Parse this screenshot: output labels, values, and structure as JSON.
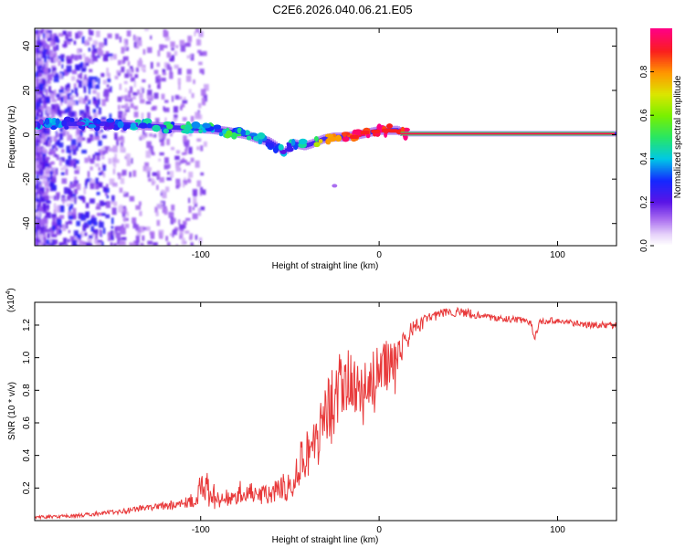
{
  "title": "C2E6.2026.040.06.21.E05",
  "chart_data": [
    {
      "type": "heatmap",
      "name": "spectrogram",
      "xlabel": "Height of straight line (km)",
      "ylabel": "Frequency (Hz)",
      "xlim": [
        -193,
        133
      ],
      "ylim": [
        -50,
        48
      ],
      "xticks": [
        -100,
        0,
        100
      ],
      "yticks": [
        -40,
        -20,
        0,
        20,
        40
      ],
      "colorbar": {
        "label": "Normalized spectral amplitude",
        "range": [
          0.0,
          1.0
        ],
        "ticks": [
          0.0,
          0.2,
          0.4,
          0.6,
          0.8
        ]
      },
      "ridge": {
        "x": [
          -190,
          -170,
          -150,
          -130,
          -110,
          -95,
          -85,
          -75,
          -68,
          -62,
          -58,
          -54,
          -48,
          -42,
          -38,
          -32,
          -26,
          -20,
          -12,
          -6,
          0,
          5,
          10,
          15,
          40,
          80,
          110,
          133
        ],
        "y": [
          5,
          5,
          5,
          4,
          3,
          2.5,
          1.5,
          0,
          -2,
          -3,
          -5,
          -8,
          -4,
          -5,
          -4,
          -2,
          -1,
          -1,
          0,
          1,
          2,
          2,
          2,
          0.5,
          0.5,
          0.5,
          0.5,
          0.5
        ],
        "amplitude": [
          0.3,
          0.3,
          0.32,
          0.35,
          0.4,
          0.42,
          0.45,
          0.4,
          0.35,
          0.3,
          0.3,
          0.3,
          0.35,
          0.4,
          0.5,
          0.7,
          0.85,
          0.9,
          0.95,
          0.95,
          0.95,
          0.95,
          0.95,
          0.97,
          1.0,
          1.0,
          1.0,
          1.0
        ]
      }
    },
    {
      "type": "line",
      "name": "snr",
      "xlabel": "Height of straight line (km)",
      "ylabel": "SNR (10 * v/v)",
      "scale_label": "(x10",
      "scale_exponent": "4",
      "xlim": [
        -193,
        133
      ],
      "ylim": [
        0.0,
        1.34
      ],
      "xticks": [
        -100,
        0,
        100
      ],
      "yticks": [
        0.2,
        0.4,
        0.6,
        0.8,
        1.0,
        1.2
      ],
      "series": [
        {
          "name": "SNR",
          "color": "#e8393a",
          "x": [
            -193,
            -170,
            -150,
            -130,
            -115,
            -105,
            -98,
            -92,
            -85,
            -78,
            -70,
            -62,
            -55,
            -50,
            -45,
            -40,
            -35,
            -30,
            -25,
            -20,
            -15,
            -10,
            -5,
            0,
            5,
            10,
            15,
            20,
            25,
            30,
            35,
            40,
            50,
            60,
            70,
            80,
            85,
            87,
            90,
            100,
            110,
            120,
            133
          ],
          "values": [
            0.02,
            0.03,
            0.05,
            0.08,
            0.1,
            0.13,
            0.2,
            0.15,
            0.14,
            0.18,
            0.17,
            0.15,
            0.2,
            0.22,
            0.35,
            0.42,
            0.5,
            0.62,
            0.75,
            0.8,
            0.82,
            0.8,
            0.82,
            0.88,
            0.96,
            1.02,
            1.12,
            1.18,
            1.22,
            1.25,
            1.27,
            1.28,
            1.27,
            1.25,
            1.24,
            1.23,
            1.22,
            1.12,
            1.22,
            1.23,
            1.21,
            1.2,
            1.2
          ],
          "noise_amplitude": [
            0.01,
            0.01,
            0.015,
            0.02,
            0.03,
            0.05,
            0.12,
            0.08,
            0.06,
            0.07,
            0.06,
            0.06,
            0.08,
            0.1,
            0.14,
            0.16,
            0.2,
            0.22,
            0.24,
            0.25,
            0.25,
            0.24,
            0.22,
            0.2,
            0.16,
            0.12,
            0.08,
            0.05,
            0.04,
            0.03,
            0.03,
            0.03,
            0.03,
            0.02,
            0.02,
            0.02,
            0.02,
            0.02,
            0.02,
            0.02,
            0.02,
            0.02,
            0.02
          ]
        }
      ]
    }
  ]
}
